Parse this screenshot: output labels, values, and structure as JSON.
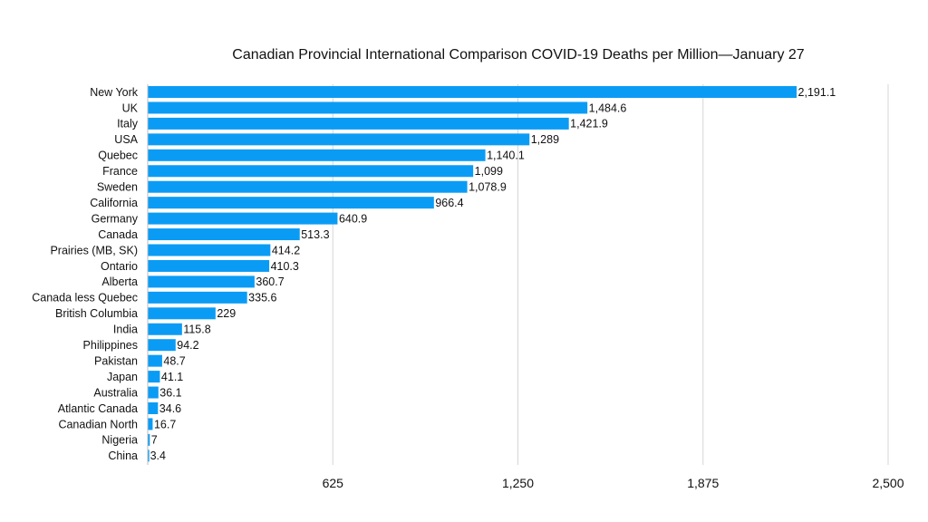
{
  "chart_data": {
    "type": "bar",
    "orientation": "horizontal",
    "title": "Canadian Provincial International Comparison COVID-19 Deaths per Million—January 27",
    "xlabel": "",
    "ylabel": "",
    "xlim": [
      0,
      2500
    ],
    "ticks": [
      "625",
      "1,250",
      "1,875",
      "2,500"
    ],
    "tick_values": [
      625,
      1250,
      1875,
      2500
    ],
    "grid": true,
    "bar_color": "#0a9cf5",
    "categories": [
      "New York",
      "UK",
      "Italy",
      "USA",
      "Quebec",
      "France",
      "Sweden",
      "California",
      "Germany",
      "Canada",
      "Prairies (MB, SK)",
      "Ontario",
      "Alberta",
      "Canada less Quebec",
      "British Columbia",
      "India",
      "Philippines",
      "Pakistan",
      "Japan",
      "Australia",
      "Atlantic Canada",
      "Canadian North",
      "Nigeria",
      "China"
    ],
    "values": [
      2191.1,
      1484.6,
      1421.9,
      1289,
      1140.1,
      1099,
      1078.9,
      966.4,
      640.9,
      513.3,
      414.2,
      410.3,
      360.7,
      335.6,
      229,
      115.8,
      94.2,
      48.7,
      41.1,
      36.1,
      34.6,
      16.7,
      7,
      3.4
    ],
    "value_labels": [
      "2,191.1",
      "1,484.6",
      "1,421.9",
      "1,289",
      "1,140.1",
      "1,099",
      "1,078.9",
      "966.4",
      "640.9",
      "513.3",
      "414.2",
      "410.3",
      "360.7",
      "335.6",
      "229",
      "115.8",
      "94.2",
      "48.7",
      "41.1",
      "36.1",
      "34.6",
      "16.7",
      "7",
      "3.4"
    ]
  }
}
